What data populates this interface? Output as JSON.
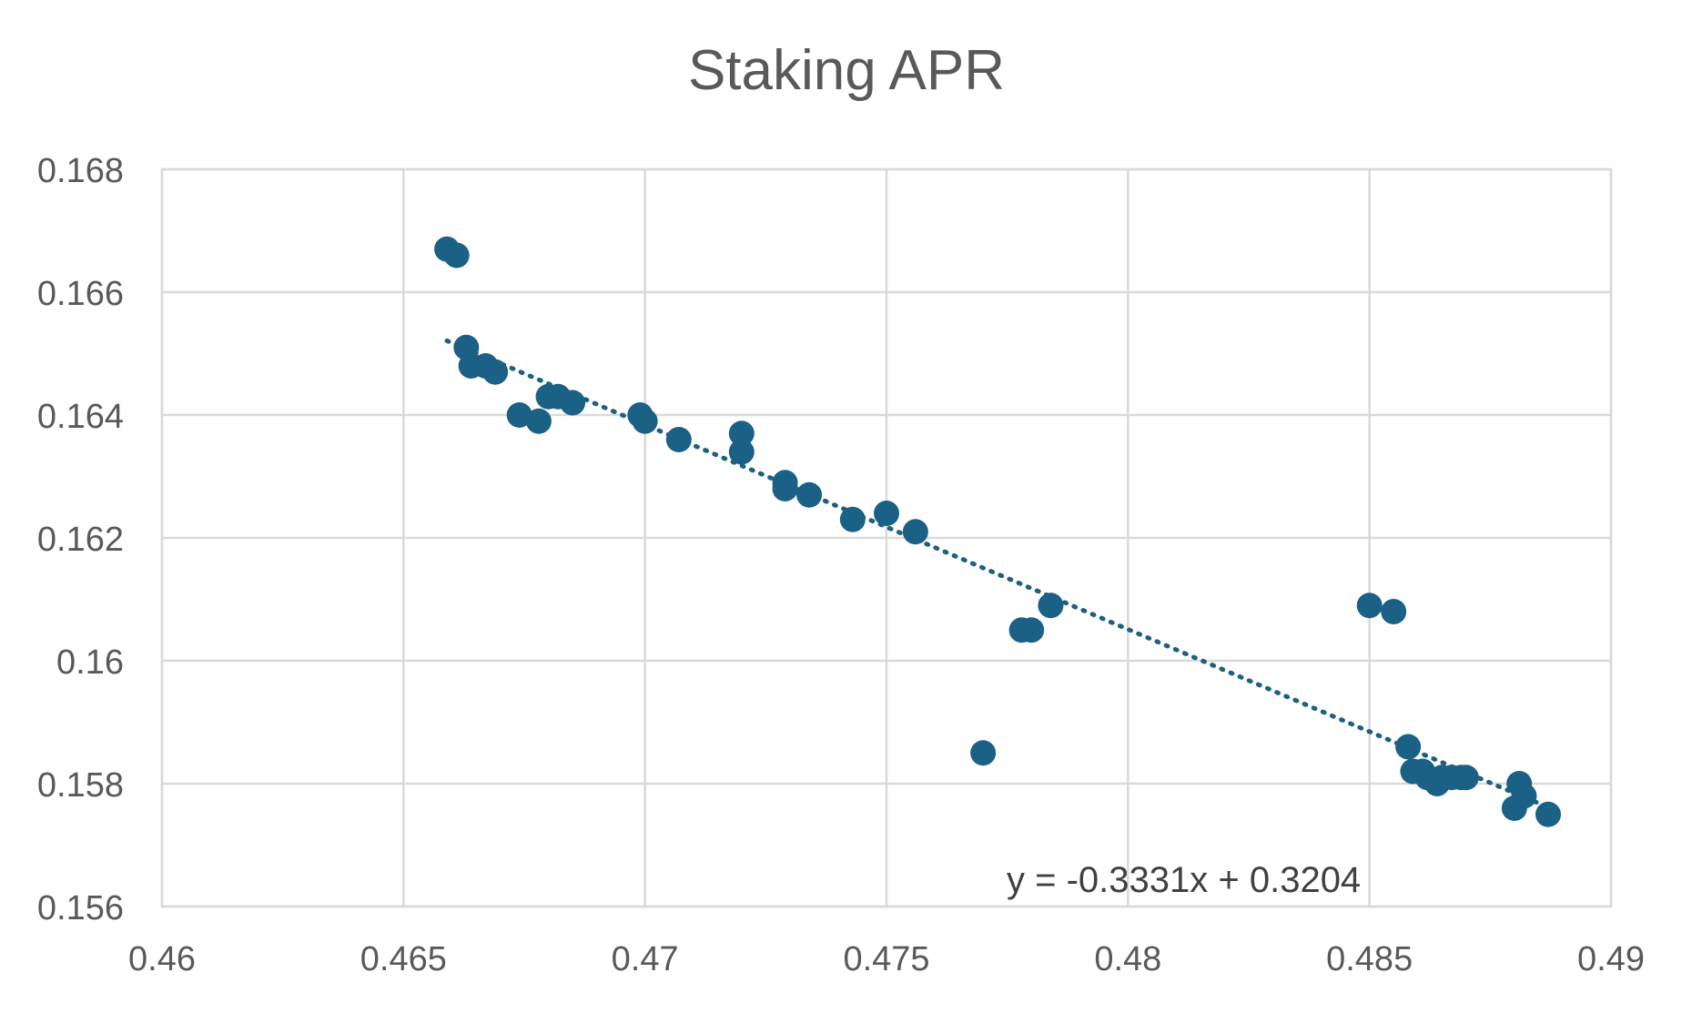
{
  "chart_data": {
    "type": "scatter",
    "title": "Staking APR",
    "xlabel": "",
    "ylabel": "",
    "xlim": [
      0.46,
      0.49
    ],
    "ylim": [
      0.156,
      0.168
    ],
    "x_ticks": [
      "0.46",
      "0.465",
      "0.47",
      "0.475",
      "0.48",
      "0.485",
      "0.49"
    ],
    "y_ticks": [
      "0.156",
      "0.158",
      "0.16",
      "0.162",
      "0.164",
      "0.166",
      "0.168"
    ],
    "grid": true,
    "legend": "none",
    "colors": {
      "points": "#1b6085",
      "trendline": "#1f5f7f",
      "grid": "#d9d9d9",
      "text": "#595959"
    },
    "series": [
      {
        "name": "Staking APR",
        "points": [
          [
            0.4659,
            0.1667
          ],
          [
            0.4661,
            0.1666
          ],
          [
            0.4663,
            0.1651
          ],
          [
            0.4664,
            0.1648
          ],
          [
            0.4667,
            0.1648
          ],
          [
            0.4669,
            0.1647
          ],
          [
            0.4674,
            0.164
          ],
          [
            0.4678,
            0.1639
          ],
          [
            0.468,
            0.1643
          ],
          [
            0.4682,
            0.1643
          ],
          [
            0.4685,
            0.1642
          ],
          [
            0.4699,
            0.164
          ],
          [
            0.47,
            0.1639
          ],
          [
            0.4707,
            0.1636
          ],
          [
            0.472,
            0.1637
          ],
          [
            0.472,
            0.1634
          ],
          [
            0.4729,
            0.1629
          ],
          [
            0.4729,
            0.1628
          ],
          [
            0.4734,
            0.1627
          ],
          [
            0.4743,
            0.1623
          ],
          [
            0.475,
            0.1624
          ],
          [
            0.4756,
            0.1621
          ],
          [
            0.477,
            0.1585
          ],
          [
            0.4778,
            0.1605
          ],
          [
            0.478,
            0.1605
          ],
          [
            0.4784,
            0.1609
          ],
          [
            0.485,
            0.1609
          ],
          [
            0.4855,
            0.1608
          ],
          [
            0.4858,
            0.1586
          ],
          [
            0.4859,
            0.1582
          ],
          [
            0.4861,
            0.1582
          ],
          [
            0.4862,
            0.1581
          ],
          [
            0.4864,
            0.158
          ],
          [
            0.4865,
            0.1581
          ],
          [
            0.4867,
            0.1581
          ],
          [
            0.4869,
            0.1581
          ],
          [
            0.487,
            0.1581
          ],
          [
            0.488,
            0.1576
          ],
          [
            0.4881,
            0.158
          ],
          [
            0.4882,
            0.1578
          ],
          [
            0.4887,
            0.1575
          ]
        ]
      }
    ],
    "trendline": {
      "type": "linear",
      "slope": -0.3331,
      "intercept": 0.3204,
      "x_range": [
        0.4659,
        0.4887
      ],
      "equation_label": "y = -0.3331x + 0.3204"
    }
  }
}
